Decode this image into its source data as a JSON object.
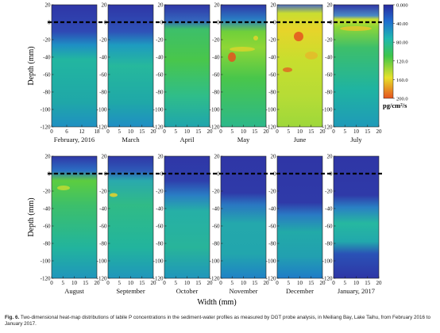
{
  "figure": {
    "y_axis_label": "Depth (mm)",
    "x_axis_label": "Width (mm)",
    "colorbar": {
      "unit": "pg/cm²/s",
      "ticks": [
        "0.000",
        "40.00",
        "80.00",
        "120.0",
        "160.0",
        "200.0"
      ],
      "colors": [
        "#2a2a9e",
        "#1f6fd0",
        "#1fb8b0",
        "#3ec64a",
        "#e7e12a",
        "#e5521f"
      ]
    },
    "y_ticks": [
      "20",
      "0",
      "-20",
      "-40",
      "-60",
      "-80",
      "-100",
      "-120"
    ],
    "panels_row1": [
      {
        "month": "February, 2016",
        "x_ticks": [
          "0",
          "6",
          "12",
          "18"
        ]
      },
      {
        "month": "March",
        "x_ticks": [
          "0",
          "5",
          "10",
          "15",
          "20"
        ]
      },
      {
        "month": "April",
        "x_ticks": [
          "0",
          "5",
          "10",
          "15",
          "20"
        ]
      },
      {
        "month": "May",
        "x_ticks": [
          "0",
          "5",
          "10",
          "15",
          "20"
        ]
      },
      {
        "month": "June",
        "x_ticks": [
          "0",
          "5",
          "10",
          "15",
          "20"
        ]
      },
      {
        "month": "July",
        "x_ticks": [
          "0",
          "5",
          "10",
          "15",
          "20"
        ]
      }
    ],
    "panels_row2": [
      {
        "month": "August",
        "x_ticks": [
          "0",
          "5",
          "10",
          "15",
          "20"
        ]
      },
      {
        "month": "September",
        "x_ticks": [
          "0",
          "5",
          "10",
          "15",
          "20"
        ]
      },
      {
        "month": "October",
        "x_ticks": [
          "0",
          "5",
          "10",
          "15",
          "20"
        ]
      },
      {
        "month": "November",
        "x_ticks": [
          "0",
          "5",
          "10",
          "15",
          "20"
        ]
      },
      {
        "month": "December",
        "x_ticks": [
          "0",
          "5",
          "10",
          "15",
          "20"
        ]
      },
      {
        "month": "January, 2017",
        "x_ticks": [
          "0",
          "5",
          "10",
          "15",
          "20"
        ]
      }
    ]
  },
  "caption": {
    "label": "Fig. 6.",
    "text": "Two-dimensional heat-map distributions of labile P concentrations in the sediment-water profiles as measured by DGT probe analysis, in Meiliang Bay, Lake Taihu, from February 2016 to January 2017."
  }
}
